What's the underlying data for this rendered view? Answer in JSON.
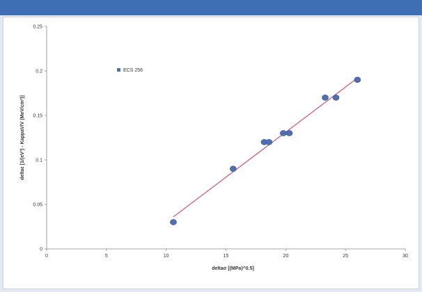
{
  "chart_data": {
    "type": "scatter",
    "title": "",
    "xlabel": "deltaσ [(MPa)^0.5]",
    "ylabel": "deltaε [1/(eV²) - KappaV/V (MeV/cm²)]",
    "xlim": [
      0,
      30
    ],
    "ylim": [
      0,
      0.25
    ],
    "x_ticks": [
      "0",
      "5",
      "10",
      "15",
      "20",
      "25",
      "30"
    ],
    "y_ticks": [
      "0",
      "0.05",
      "0.1",
      "0.15",
      "0.2",
      "0.25"
    ],
    "grid": false,
    "legend_position": "top-left",
    "series": [
      {
        "name": "ECS 256",
        "color": "#4f6fb0",
        "points": [
          {
            "x": 10.6,
            "y": 0.03
          },
          {
            "x": 15.6,
            "y": 0.09
          },
          {
            "x": 18.2,
            "y": 0.12
          },
          {
            "x": 18.6,
            "y": 0.12
          },
          {
            "x": 19.8,
            "y": 0.13
          },
          {
            "x": 20.3,
            "y": 0.13
          },
          {
            "x": 23.3,
            "y": 0.17
          },
          {
            "x": 24.2,
            "y": 0.17
          },
          {
            "x": 26.0,
            "y": 0.19
          }
        ]
      }
    ],
    "trendline": {
      "color": "#c96a8a",
      "from": {
        "x": 10.6,
        "y": 0.036
      },
      "to": {
        "x": 26.0,
        "y": 0.192
      }
    }
  }
}
